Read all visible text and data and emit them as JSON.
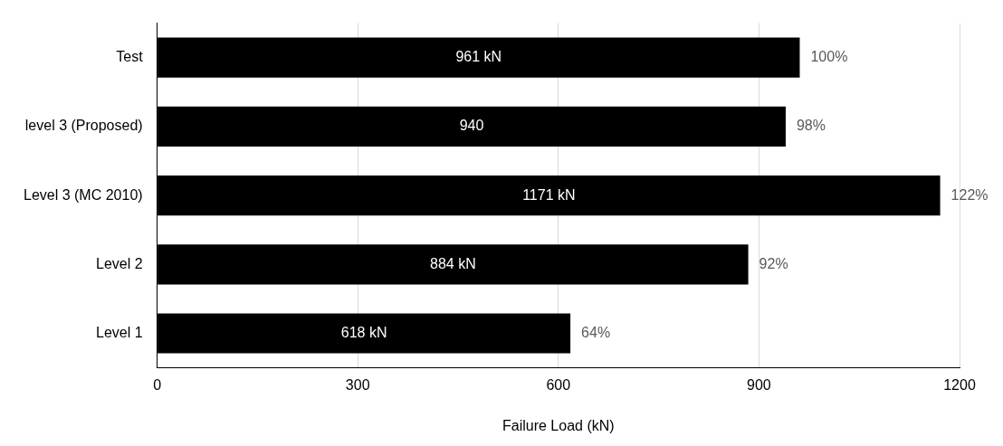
{
  "chart_data": {
    "type": "bar",
    "orientation": "horizontal",
    "categories": [
      "Test",
      "level 3 (Proposed)",
      "Level 3 (MC 2010)",
      "Level 2",
      "Level 1"
    ],
    "values": [
      961,
      940,
      1171,
      884,
      618
    ],
    "value_labels": [
      "961 kN",
      "940",
      "1171 kN",
      "884 kN",
      "618 kN"
    ],
    "color": "#000000",
    "xlim": [
      0,
      1200
    ],
    "xticks": [
      0,
      300,
      600,
      900,
      1200
    ],
    "xlabel": "Failure Load (kN)",
    "grid": "x",
    "annotations": [
      {
        "text": "100%",
        "x": 961,
        "y": "Test"
      },
      {
        "text": "98%",
        "x": 940,
        "y": "level 3 (Proposed)"
      },
      {
        "text": "122%",
        "x": 1171,
        "y": "Level 3 (MC 2010)"
      },
      {
        "text": "92%",
        "x": 884,
        "y": "Level 2"
      },
      {
        "text": "64%",
        "x": 618,
        "y": "Level 1"
      }
    ]
  }
}
